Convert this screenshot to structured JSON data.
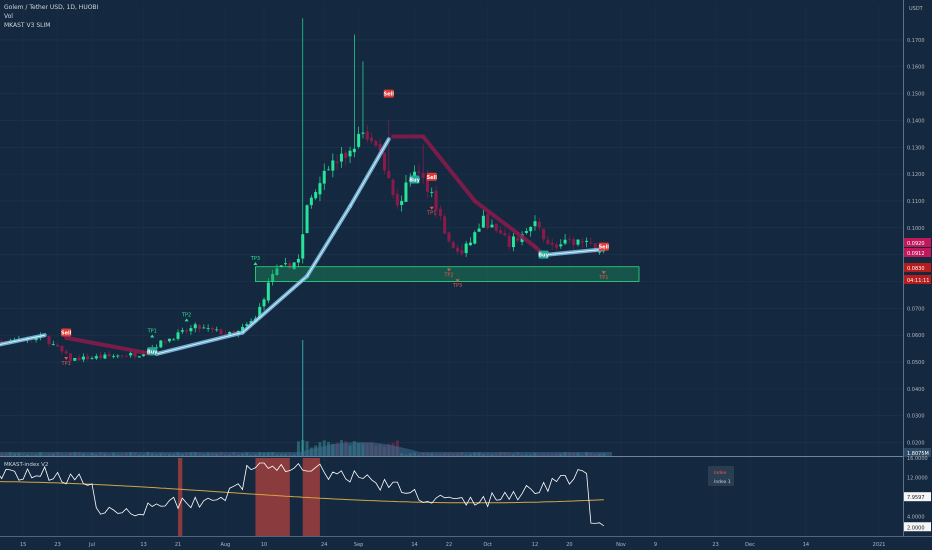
{
  "header": {
    "title": "Golem / Tether USD, 1D, HUOBI",
    "vol": "Vol",
    "indicator": "MKAST V3 SLIM"
  },
  "subpane": {
    "title": "MKAST-index V2",
    "legend_top": "Index",
    "legend_bottom": "Index 1"
  },
  "axis": {
    "currency": "USDT",
    "price_ticks": [
      "0.1700",
      "0.1600",
      "0.1500",
      "0.1400",
      "0.1300",
      "0.1200",
      "0.1100",
      "0.1000",
      "0.0900",
      "0.0800",
      "0.0700",
      "0.0600",
      "0.0500",
      "0.0400",
      "0.0300",
      "0.0200"
    ],
    "badges": [
      {
        "text": "0.0920",
        "color": "#c2185b"
      },
      {
        "text": "0.0912",
        "color": "#c2185b"
      },
      {
        "text": "0.0830",
        "color": "#b71c1c"
      },
      {
        "text": "04:11:11",
        "color": "#b71c1c"
      },
      {
        "text": "1.8075M",
        "color": "#2f4a64"
      }
    ],
    "index_ticks": [
      "16.0000",
      "12.0000",
      "8.0000",
      "4.0000"
    ],
    "index_badges": [
      {
        "text": "7.9597",
        "color": "#f5f5f5"
      },
      {
        "text": "2.0000",
        "color": "#f5f5f5"
      }
    ],
    "time_ticks": [
      "15",
      "23",
      "Jul",
      "13",
      "21",
      "Aug",
      "10",
      "24",
      "Sep",
      "14",
      "22",
      "Oct",
      "12",
      "20",
      "Nov",
      "9",
      "23",
      "Dec",
      "14",
      "2021"
    ]
  },
  "colors": {
    "bg": "#14293f",
    "up": "#26e49a",
    "down": "#8b1a4b",
    "trend_up": "#7ec3e6",
    "trend_down": "#8b1a4b",
    "zone_fill": "#1b8a5a",
    "zone_edge": "#2ee07a",
    "signal_sell": "#e53935",
    "signal_buy": "#26a69a",
    "index_line": "#ffffff",
    "index_ma": "#d4a545",
    "index_band": "#b0413e"
  },
  "signals": [
    {
      "label": "Sell",
      "type": "sell",
      "date": "Jun 25"
    },
    {
      "label": "Buy",
      "type": "buy",
      "date": "Jul 15"
    },
    {
      "label": "Sell",
      "type": "sell",
      "date": "Sep 8"
    },
    {
      "label": "Buy",
      "type": "buy",
      "date": "Sep 14"
    },
    {
      "label": "Sell",
      "type": "sell",
      "date": "Sep 18"
    },
    {
      "label": "Buy",
      "type": "buy",
      "date": "Oct 14"
    },
    {
      "label": "Sell",
      "type": "sell",
      "date": "Oct 28"
    }
  ],
  "targets": [
    {
      "label": "TP1",
      "kind": "down",
      "date": "Jun 25"
    },
    {
      "label": "TP1",
      "kind": "up",
      "date": "Jul 15"
    },
    {
      "label": "TP2",
      "kind": "up",
      "date": "Jul 23"
    },
    {
      "label": "TP3",
      "kind": "up",
      "date": "Aug 8"
    },
    {
      "label": "TP1",
      "kind": "down",
      "date": "Sep 18"
    },
    {
      "label": "TP2",
      "kind": "down",
      "date": "Sep 22"
    },
    {
      "label": "TP3",
      "kind": "down",
      "date": "Sep 24"
    },
    {
      "label": "TP1",
      "kind": "down",
      "date": "Oct 28"
    }
  ],
  "chart_data": {
    "type": "candlestick",
    "ylim": [
      0.015,
      0.183
    ],
    "trend": [
      {
        "date": "Jun 5",
        "value": 0.055,
        "dir": "up"
      },
      {
        "date": "Jun 20",
        "value": 0.06,
        "dir": "up"
      },
      {
        "date": "Jun 25",
        "value": 0.059,
        "dir": "down"
      },
      {
        "date": "Jul 15",
        "value": 0.053,
        "dir": "down"
      },
      {
        "date": "Jul 16",
        "value": 0.053,
        "dir": "up"
      },
      {
        "date": "Aug 5",
        "value": 0.061,
        "dir": "up"
      },
      {
        "date": "Aug 20",
        "value": 0.082,
        "dir": "up"
      },
      {
        "date": "Aug 30",
        "value": 0.108,
        "dir": "up"
      },
      {
        "date": "Sep 8",
        "value": 0.133,
        "dir": "up"
      },
      {
        "date": "Sep 9",
        "value": 0.134,
        "dir": "down"
      },
      {
        "date": "Sep 16",
        "value": 0.134,
        "dir": "down"
      },
      {
        "date": "Sep 28",
        "value": 0.11,
        "dir": "down"
      },
      {
        "date": "Oct 12",
        "value": 0.093,
        "dir": "down"
      },
      {
        "date": "Oct 14",
        "value": 0.09,
        "dir": "down"
      },
      {
        "date": "Oct 15",
        "value": 0.09,
        "dir": "up"
      },
      {
        "date": "Oct 28",
        "value": 0.092,
        "dir": "up"
      }
    ],
    "support_zone": {
      "from": "Aug 8",
      "to": "Nov 1",
      "low": 0.08,
      "high": 0.0855
    },
    "volume": {
      "last": "1.8075M",
      "spike_date": "Aug 19"
    },
    "index": {
      "ylim": [
        0,
        16
      ],
      "current": 7.9597,
      "lower": 2.0,
      "spike_ranges": [
        [
          "Jul 21",
          "Jul 22"
        ],
        [
          "Aug 8",
          "Aug 16"
        ],
        [
          "Aug 19",
          "Aug 23"
        ]
      ]
    }
  }
}
